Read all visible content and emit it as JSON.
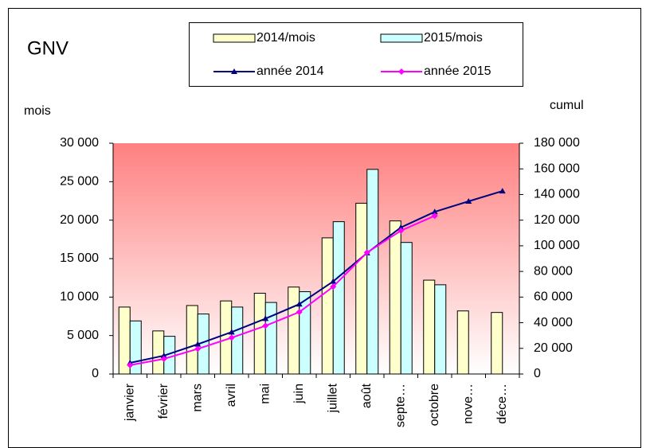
{
  "chart_data": {
    "type": "bar_line",
    "title": "GNV",
    "y_label": "mois",
    "y2_label": "cumul",
    "categories": [
      "janvier",
      "février",
      "mars",
      "avril",
      "mai",
      "juin",
      "juillet",
      "août",
      "septe…",
      "octobre",
      "nove…",
      "déce…"
    ],
    "series": [
      {
        "name": "2014/mois",
        "kind": "bar",
        "color": "#ffffcc",
        "values": [
          8700,
          5600,
          8900,
          9500,
          10500,
          11300,
          17700,
          22200,
          19900,
          12200,
          8200,
          8000
        ]
      },
      {
        "name": "2015/mois",
        "kind": "bar",
        "color": "#ccffff",
        "values": [
          6900,
          4900,
          7800,
          8700,
          9300,
          10700,
          19800,
          26600,
          17100,
          11600,
          null,
          null
        ]
      },
      {
        "name": "année 2014",
        "kind": "line",
        "axis": "y2",
        "marker": "triangle",
        "color": "#000080",
        "values": [
          8700,
          14300,
          23200,
          32700,
          43200,
          54500,
          72200,
          94400,
          114300,
          126500,
          134700,
          142700
        ]
      },
      {
        "name": "année 2015",
        "kind": "line",
        "axis": "y2",
        "marker": "diamond",
        "color": "#ff00ff",
        "values": [
          6900,
          11800,
          19600,
          28300,
          37600,
          48300,
          68100,
          94700,
          111800,
          123400,
          null,
          null
        ]
      }
    ],
    "ylim": [
      0,
      30000
    ],
    "yticks": [
      0,
      {
        "value": 5000,
        "label": "5 000"
      },
      {
        "value": 10000,
        "label": "10 000"
      },
      {
        "value": 15000,
        "label": "15 000"
      },
      {
        "value": 20000,
        "label": "20 000"
      },
      {
        "value": 25000,
        "label": "25 000"
      },
      {
        "value": 30000,
        "label": "30 000"
      }
    ],
    "y2lim": [
      0,
      180000
    ],
    "y2ticks": [
      0,
      {
        "value": 20000,
        "label": "20 000"
      },
      {
        "value": 40000,
        "label": "40 000"
      },
      {
        "value": 60000,
        "label": "60 000"
      },
      {
        "value": 80000,
        "label": "80 000"
      },
      {
        "value": 100000,
        "label": "100 000"
      },
      {
        "value": 120000,
        "label": "120 000"
      },
      {
        "value": 140000,
        "label": "140 000"
      },
      {
        "value": 160000,
        "label": "160 000"
      },
      {
        "value": 180000,
        "label": "180 000"
      }
    ],
    "legend": "top"
  }
}
